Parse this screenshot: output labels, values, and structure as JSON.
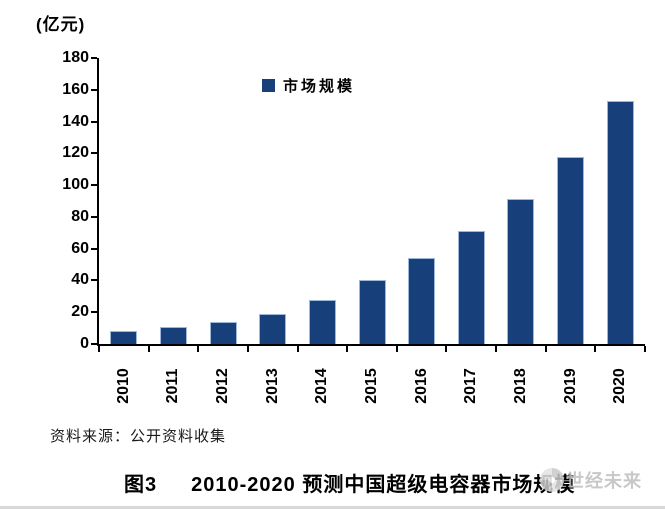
{
  "unit_label": "(亿元)",
  "legend": {
    "label": "市场规模"
  },
  "source_note": "资料来源：公开资料收集",
  "caption": {
    "prefix": "图3",
    "text": "2010-2020 预测中国超级电容器市场规模"
  },
  "watermark": {
    "text": "世经未来"
  },
  "colors": {
    "bar": "#17407B",
    "axis": "#000000",
    "watermark": "#bfbfbf"
  },
  "chart_data": {
    "type": "bar",
    "title": "图3 2010-2020 预测中国超级电容器市场规模",
    "unit": "亿元",
    "categories": [
      "2010",
      "2011",
      "2012",
      "2013",
      "2014",
      "2015",
      "2016",
      "2017",
      "2018",
      "2019",
      "2020"
    ],
    "series": [
      {
        "name": "市场规模",
        "values": [
          8,
          11,
          14,
          19,
          28,
          40,
          54,
          71,
          91,
          118,
          153
        ]
      }
    ],
    "xlabel": "",
    "ylabel": "(亿元)",
    "ylim": [
      0,
      180
    ],
    "ytick_step": 20,
    "grid": false,
    "legend_position": "top-center",
    "bar_color": "#17407B",
    "source": "资料来源：公开资料收集"
  }
}
